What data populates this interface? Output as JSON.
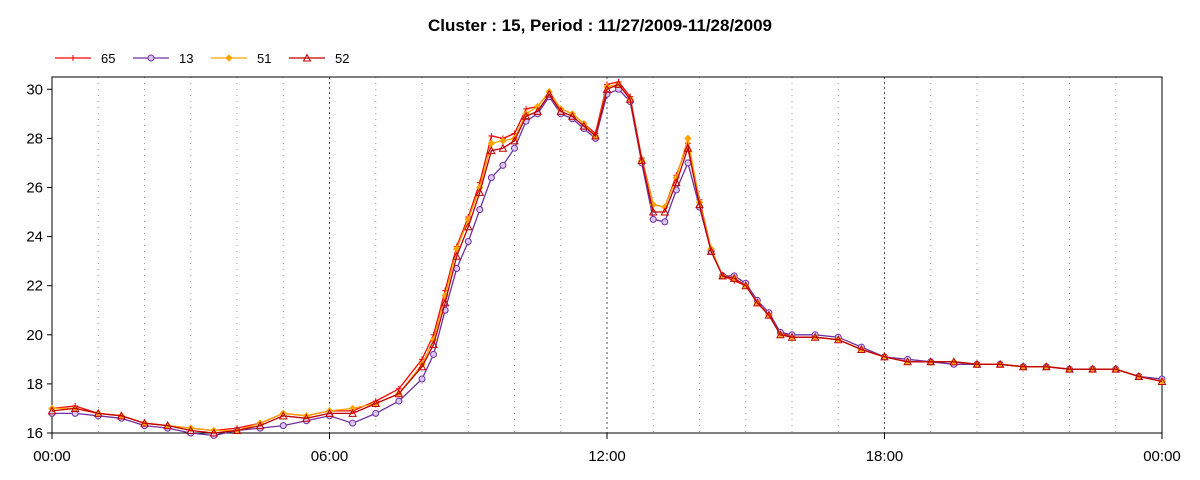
{
  "chart_data": {
    "type": "line",
    "title": "Cluster : 15, Period : 11/27/2009-11/28/2009",
    "xlabel": "",
    "ylabel": "",
    "x_ticks": [
      "00:00",
      "06:00",
      "12:00",
      "18:00",
      "00:00"
    ],
    "x_tick_hours": [
      0,
      6,
      12,
      18,
      24
    ],
    "xlim": [
      0,
      24
    ],
    "ylim": [
      16,
      30.5
    ],
    "y_ticks": [
      16,
      18,
      20,
      22,
      24,
      26,
      28,
      30
    ],
    "grid": "dotted",
    "legend_position": "top-left",
    "x": [
      0,
      0.5,
      1,
      1.5,
      2,
      2.5,
      3,
      3.5,
      4,
      4.5,
      5,
      5.5,
      6,
      6.5,
      7,
      7.5,
      8,
      8.25,
      8.5,
      8.75,
      9,
      9.25,
      9.5,
      9.75,
      10,
      10.25,
      10.5,
      10.75,
      11,
      11.25,
      11.5,
      11.75,
      12,
      12.25,
      12.5,
      12.75,
      13,
      13.25,
      13.5,
      13.75,
      14,
      14.25,
      14.5,
      14.75,
      15,
      15.25,
      15.5,
      15.75,
      16,
      16.5,
      17,
      17.5,
      18,
      18.5,
      19,
      19.5,
      20,
      20.5,
      21,
      21.5,
      22,
      22.5,
      23,
      23.5,
      24
    ],
    "series": [
      {
        "name": "65",
        "color": "#ff0000",
        "marker": "plus",
        "values": [
          17.0,
          17.1,
          16.8,
          16.7,
          16.4,
          16.3,
          16.2,
          16.1,
          16.2,
          16.4,
          16.8,
          16.7,
          16.9,
          16.9,
          17.3,
          17.8,
          19.0,
          20.0,
          21.8,
          23.6,
          24.8,
          26.2,
          28.1,
          28.0,
          28.2,
          29.2,
          29.3,
          29.9,
          29.2,
          29.0,
          28.6,
          28.2,
          30.2,
          30.3,
          29.7,
          27.2,
          25.3,
          25.2,
          26.5,
          27.8,
          25.5,
          23.5,
          22.4,
          22.2,
          22.0,
          21.3,
          20.8,
          20.1,
          19.9,
          19.9,
          19.8,
          19.4,
          19.1,
          18.9,
          18.9,
          18.9,
          18.8,
          18.8,
          18.7,
          18.7,
          18.6,
          18.6,
          18.6,
          18.3,
          18.1
        ]
      },
      {
        "name": "13",
        "color": "#7030a0",
        "marker": "circle",
        "values": [
          16.8,
          16.8,
          16.7,
          16.6,
          16.3,
          16.2,
          16.0,
          15.9,
          16.1,
          16.2,
          16.3,
          16.5,
          16.7,
          16.4,
          16.8,
          17.3,
          18.2,
          19.2,
          21.0,
          22.7,
          23.8,
          25.1,
          26.4,
          26.9,
          27.6,
          28.7,
          29.0,
          29.7,
          29.0,
          28.8,
          28.4,
          28.0,
          29.8,
          30.0,
          29.5,
          27.0,
          24.7,
          24.6,
          25.9,
          27.0,
          25.2,
          23.4,
          22.4,
          22.4,
          22.1,
          21.4,
          20.9,
          20.1,
          20.0,
          20.0,
          19.9,
          19.5,
          19.1,
          19.0,
          18.9,
          18.8,
          18.8,
          18.8,
          18.7,
          18.7,
          18.6,
          18.6,
          18.6,
          18.3,
          18.2
        ]
      },
      {
        "name": "51",
        "color": "#ffa500",
        "marker": "diamond",
        "values": [
          17.0,
          17.0,
          16.8,
          16.7,
          16.4,
          16.3,
          16.2,
          16.1,
          16.1,
          16.4,
          16.8,
          16.7,
          16.9,
          17.0,
          17.2,
          17.6,
          18.8,
          19.8,
          21.6,
          23.5,
          24.7,
          26.0,
          27.8,
          27.9,
          28.0,
          29.0,
          29.3,
          29.9,
          29.2,
          29.0,
          28.6,
          28.1,
          30.1,
          30.2,
          29.6,
          27.1,
          25.3,
          25.2,
          26.4,
          28.0,
          25.4,
          23.5,
          22.4,
          22.3,
          22.0,
          21.3,
          20.8,
          20.0,
          19.9,
          19.9,
          19.8,
          19.4,
          19.1,
          18.9,
          18.9,
          18.9,
          18.8,
          18.8,
          18.7,
          18.7,
          18.6,
          18.6,
          18.6,
          18.3,
          18.1
        ]
      },
      {
        "name": "52",
        "color": "#c00000",
        "marker": "triangle",
        "values": [
          16.9,
          17.0,
          16.8,
          16.7,
          16.4,
          16.3,
          16.1,
          16.0,
          16.1,
          16.3,
          16.7,
          16.6,
          16.8,
          16.8,
          17.2,
          17.6,
          18.7,
          19.6,
          21.3,
          23.2,
          24.4,
          25.8,
          27.5,
          27.6,
          27.9,
          28.9,
          29.1,
          29.8,
          29.1,
          28.9,
          28.5,
          28.1,
          30.0,
          30.2,
          29.6,
          27.1,
          25.0,
          25.0,
          26.2,
          27.6,
          25.3,
          23.4,
          22.4,
          22.3,
          22.0,
          21.3,
          20.8,
          20.0,
          19.9,
          19.9,
          19.8,
          19.4,
          19.1,
          18.9,
          18.9,
          18.9,
          18.8,
          18.8,
          18.7,
          18.7,
          18.6,
          18.6,
          18.6,
          18.3,
          18.1
        ]
      }
    ]
  }
}
